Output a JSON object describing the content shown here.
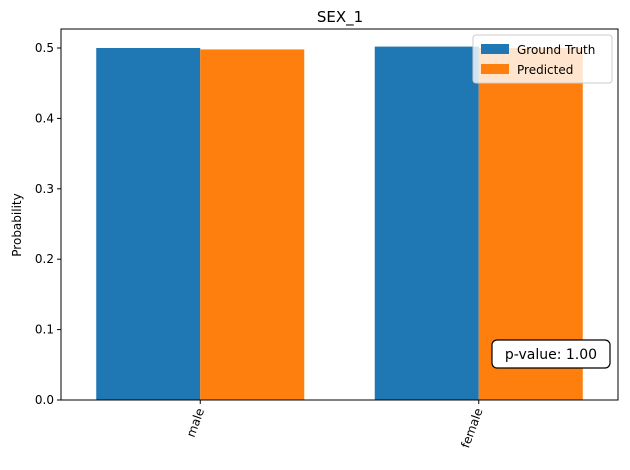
{
  "chart_data": {
    "type": "bar",
    "title": "SEX_1",
    "xlabel": "",
    "ylabel": "Probability",
    "categories": [
      "male",
      "female"
    ],
    "series": [
      {
        "name": "Ground Truth",
        "color": "#1f77b4",
        "values": [
          0.5,
          0.502
        ]
      },
      {
        "name": "Predicted",
        "color": "#ff7f0e",
        "values": [
          0.498,
          0.5
        ]
      }
    ],
    "ylim": [
      0,
      0.527
    ],
    "yticks": [
      "0.0",
      "0.1",
      "0.2",
      "0.3",
      "0.4",
      "0.5"
    ],
    "grid": false,
    "legend_position": "top-right",
    "annotation": "p-value: 1.00",
    "xtick_rotation": "rotated"
  }
}
